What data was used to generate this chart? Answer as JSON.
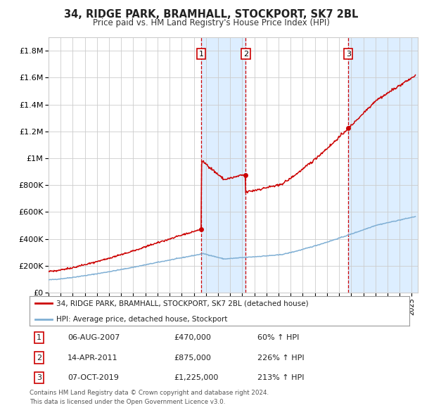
{
  "title": "34, RIDGE PARK, BRAMHALL, STOCKPORT, SK7 2BL",
  "subtitle": "Price paid vs. HM Land Registry's House Price Index (HPI)",
  "ylabel_ticks": [
    "£0",
    "£200K",
    "£400K",
    "£600K",
    "£800K",
    "£1M",
    "£1.2M",
    "£1.4M",
    "£1.6M",
    "£1.8M"
  ],
  "ytick_vals": [
    0,
    200000,
    400000,
    600000,
    800000,
    1000000,
    1200000,
    1400000,
    1600000,
    1800000
  ],
  "ylim": [
    0,
    1900000
  ],
  "xlim_start": 1995.0,
  "xlim_end": 2025.5,
  "sales": [
    {
      "date_num": 2007.6,
      "price": 470000,
      "label": "1"
    },
    {
      "date_num": 2011.28,
      "price": 875000,
      "label": "2"
    },
    {
      "date_num": 2019.76,
      "price": 1225000,
      "label": "3"
    }
  ],
  "sale_vline_color": "#cc0000",
  "sale_box_color": "#cc0000",
  "highlight_color": "#ddeeff",
  "property_line_color": "#cc0000",
  "hpi_line_color": "#7fafd4",
  "legend_property_label": "34, RIDGE PARK, BRAMHALL, STOCKPORT, SK7 2BL (detached house)",
  "legend_hpi_label": "HPI: Average price, detached house, Stockport",
  "table_rows": [
    {
      "num": "1",
      "date": "06-AUG-2007",
      "price": "£470,000",
      "change": "60% ↑ HPI"
    },
    {
      "num": "2",
      "date": "14-APR-2011",
      "price": "£875,000",
      "change": "226% ↑ HPI"
    },
    {
      "num": "3",
      "date": "07-OCT-2019",
      "price": "£1,225,000",
      "change": "213% ↑ HPI"
    }
  ],
  "footnote1": "Contains HM Land Registry data © Crown copyright and database right 2024.",
  "footnote2": "This data is licensed under the Open Government Licence v3.0.",
  "background_color": "#ffffff",
  "grid_color": "#cccccc"
}
